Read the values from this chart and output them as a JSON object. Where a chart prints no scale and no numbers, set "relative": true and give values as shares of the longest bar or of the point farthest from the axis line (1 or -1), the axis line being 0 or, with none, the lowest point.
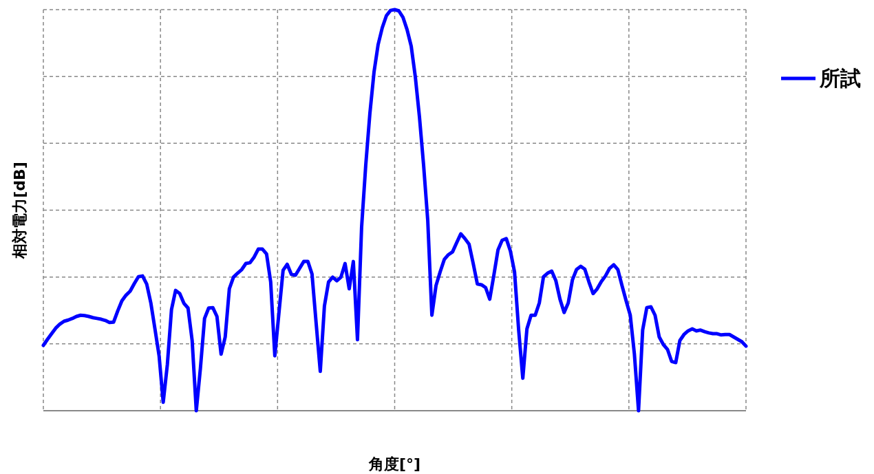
{
  "chart_data": {
    "type": "line",
    "xlabel": "角度[°]",
    "ylabel": "相対電力[dB]",
    "relative": true,
    "grid": true,
    "legend": "top right",
    "categories": [
      null,
      null,
      null,
      null,
      null,
      null,
      null,
      null,
      null,
      null,
      null,
      null,
      null,
      null,
      null,
      null,
      null,
      null,
      null,
      null,
      null,
      null,
      null,
      null,
      null,
      null,
      null,
      null,
      null,
      null,
      null,
      null,
      null,
      null,
      null,
      null,
      null,
      null,
      null,
      null,
      null,
      null,
      null,
      null,
      null,
      null,
      null,
      null,
      null,
      null,
      null,
      null,
      null,
      null,
      null,
      null,
      null,
      null,
      null,
      null,
      null,
      null,
      null,
      null,
      null,
      null,
      null,
      null,
      null,
      null,
      null,
      null,
      null,
      null,
      null,
      null,
      null,
      null,
      null,
      null,
      null,
      null,
      null,
      null,
      null,
      null,
      null,
      null,
      null,
      null,
      null,
      null,
      null,
      null,
      null,
      null,
      null,
      null,
      null,
      null,
      null,
      null,
      null,
      null,
      null,
      null,
      null,
      null,
      null,
      null,
      null,
      null,
      null,
      null,
      null,
      null,
      null,
      null,
      null,
      null,
      null,
      null,
      null,
      null,
      null,
      null,
      null,
      null,
      null,
      null,
      null,
      null,
      null,
      null,
      null,
      null,
      null,
      null,
      null,
      null,
      null,
      null,
      null,
      null,
      null,
      null,
      null,
      null,
      null,
      null,
      null,
      null,
      null,
      null,
      null,
      null,
      null,
      null,
      null,
      null,
      null,
      null,
      null,
      null,
      null,
      null,
      null,
      null,
      null,
      null,
      null
    ],
    "series": [
      {
        "name": "所試",
        "color": "#0000ff",
        "values": [
          0.163,
          0.178,
          0.192,
          0.206,
          0.216,
          0.223,
          0.226,
          0.23,
          0.235,
          0.238,
          0.237,
          0.235,
          0.232,
          0.23,
          0.228,
          0.225,
          0.22,
          0.221,
          0.249,
          0.274,
          0.288,
          0.298,
          0.317,
          0.334,
          0.336,
          0.316,
          0.269,
          0.204,
          0.137,
          0.021,
          0.115,
          0.252,
          0.3,
          0.292,
          0.268,
          0.256,
          0.175,
          0,
          0.106,
          0.23,
          0.256,
          0.257,
          0.235,
          0.141,
          0.184,
          0.304,
          0.333,
          0.343,
          0.352,
          0.367,
          0.369,
          0.383,
          0.403,
          0.403,
          0.391,
          0.321,
          0.137,
          0.244,
          0.35,
          0.365,
          0.34,
          0.338,
          0.355,
          0.372,
          0.372,
          0.341,
          0.218,
          0.098,
          0.261,
          0.321,
          0.333,
          0.324,
          0.333,
          0.367,
          0.304,
          0.372,
          0.177,
          0.458,
          0.612,
          0.741,
          0.844,
          0.913,
          0.955,
          0.985,
          0.998,
          1,
          0.997,
          0.981,
          0.95,
          0.909,
          0.832,
          0.732,
          0.612,
          0.475,
          0.238,
          0.312,
          0.346,
          0.377,
          0.389,
          0.396,
          0.419,
          0.441,
          0.429,
          0.415,
          0.367,
          0.316,
          0.314,
          0.307,
          0.278,
          0.338,
          0.401,
          0.425,
          0.429,
          0.398,
          0.346,
          0.201,
          0.081,
          0.204,
          0.238,
          0.238,
          0.269,
          0.334,
          0.343,
          0.348,
          0.324,
          0.278,
          0.245,
          0.269,
          0.326,
          0.352,
          0.36,
          0.353,
          0.321,
          0.292,
          0.304,
          0.322,
          0.336,
          0.355,
          0.364,
          0.352,
          0.312,
          0.274,
          0.238,
          0.141,
          0,
          0.201,
          0.257,
          0.259,
          0.238,
          0.184,
          0.165,
          0.153,
          0.123,
          0.12,
          0.175,
          0.19,
          0.199,
          0.204,
          0.199,
          0.201,
          0.197,
          0.194,
          0.192,
          0.192,
          0.189,
          0.19,
          0.19,
          0.184,
          0.178,
          0.172,
          0.161
        ]
      }
    ]
  }
}
